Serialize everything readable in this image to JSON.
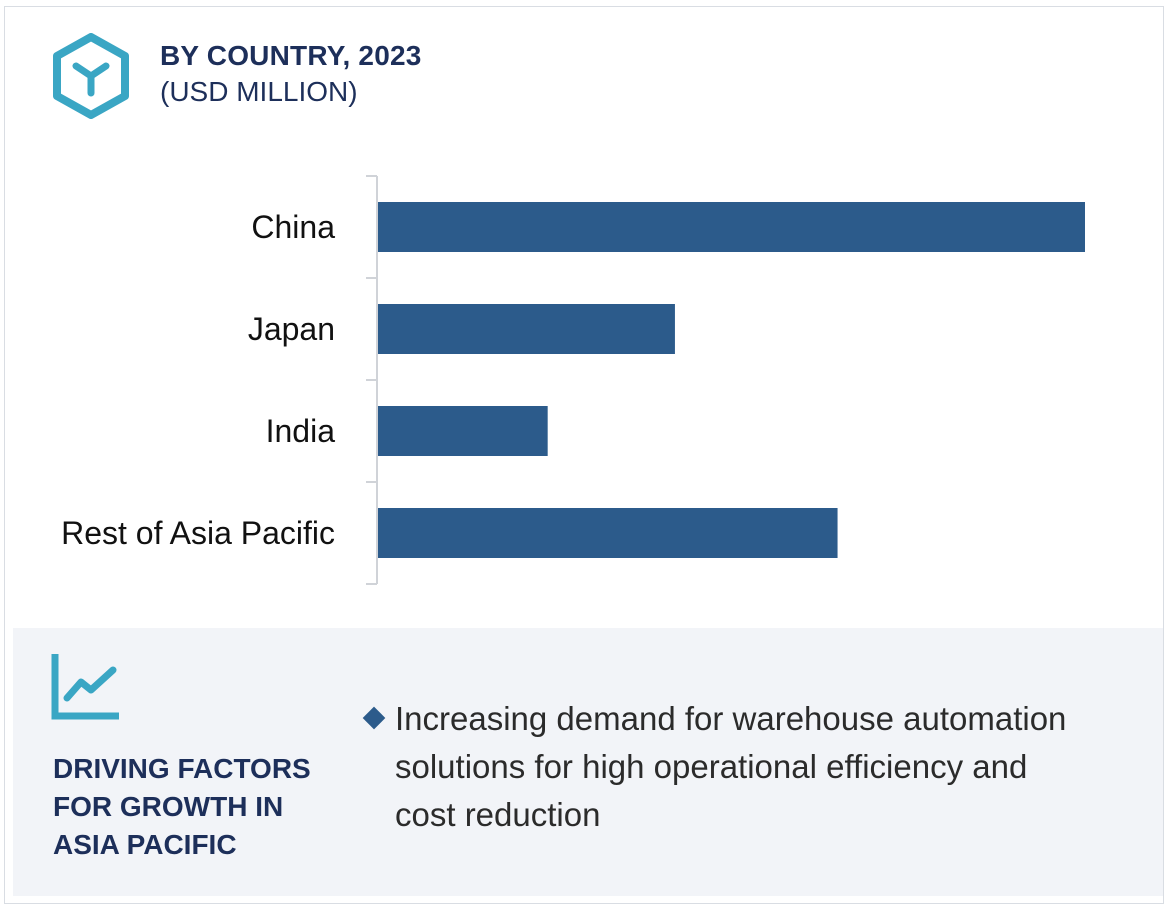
{
  "header": {
    "title": "BY COUNTRY, 2023",
    "subtitle": "(USD MILLION)",
    "icon": "cube-icon",
    "icon_color": "#3aa6c4"
  },
  "chart_data": {
    "type": "bar",
    "orientation": "horizontal",
    "categories": [
      "China",
      "Japan",
      "India",
      "Rest of Asia Pacific"
    ],
    "values": [
      100,
      42,
      24,
      65
    ],
    "value_unit": "relative (no values printed)",
    "xlabel": "",
    "ylabel": "",
    "xlim": [
      0,
      100
    ],
    "grid": false,
    "legend": "none",
    "bar_color": "#2c5b8b"
  },
  "panel": {
    "icon": "trend-line-icon",
    "heading_lines": [
      "DRIVING FACTORS",
      "FOR GROWTH IN",
      "ASIA PACIFIC"
    ],
    "bullet_lines": [
      "Increasing demand for warehouse automation",
      "solutions for high operational efficiency and",
      "cost reduction"
    ],
    "bullet_icon": "diamond-bullet-icon"
  }
}
